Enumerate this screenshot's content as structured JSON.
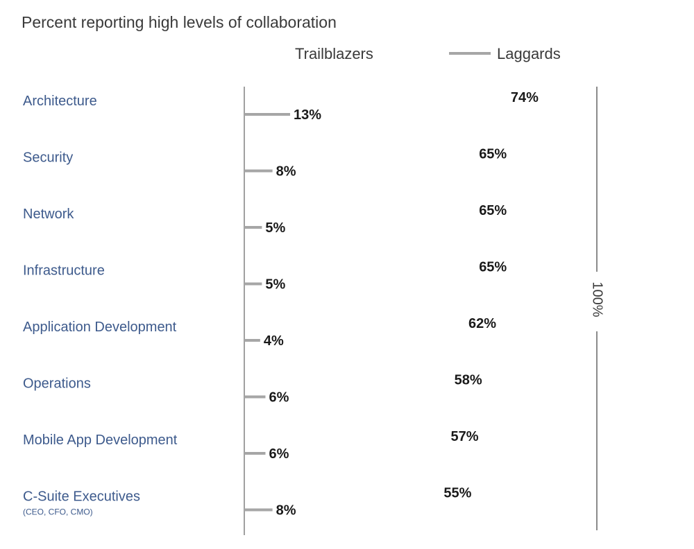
{
  "chart_data": {
    "type": "bar",
    "orientation": "horizontal",
    "title": "Percent reporting high levels of collaboration",
    "categories": [
      "Architecture",
      "Security",
      "Network",
      "Infrastructure",
      "Application Development",
      "Operations",
      "Mobile App Development",
      "C-Suite Executives"
    ],
    "category_notes": [
      "",
      "",
      "",
      "",
      "",
      "",
      "",
      "(CEO, CFO, CMO)"
    ],
    "series": [
      {
        "name": "Trailblazers",
        "values": [
          74,
          65,
          65,
          65,
          62,
          58,
          57,
          55
        ],
        "labels": [
          "74%",
          "65%",
          "65%",
          "65%",
          "62%",
          "58%",
          "57%",
          "55%"
        ]
      },
      {
        "name": "Laggards",
        "values": [
          13,
          8,
          5,
          5,
          4,
          6,
          6,
          8
        ],
        "labels": [
          "13%",
          "8%",
          "5%",
          "5%",
          "4%",
          "6%",
          "6%",
          "8%"
        ]
      }
    ],
    "xlim": [
      0,
      100
    ],
    "scale_label": "100%",
    "legend_position": "top-right",
    "grid": false,
    "colors": {
      "trailblazers_start": "#1e3f7c",
      "trailblazers_end": "#78c842",
      "laggards": "#a6a6a6",
      "axis": "#a0a0a0",
      "category_text": "#3d5a8c"
    }
  }
}
